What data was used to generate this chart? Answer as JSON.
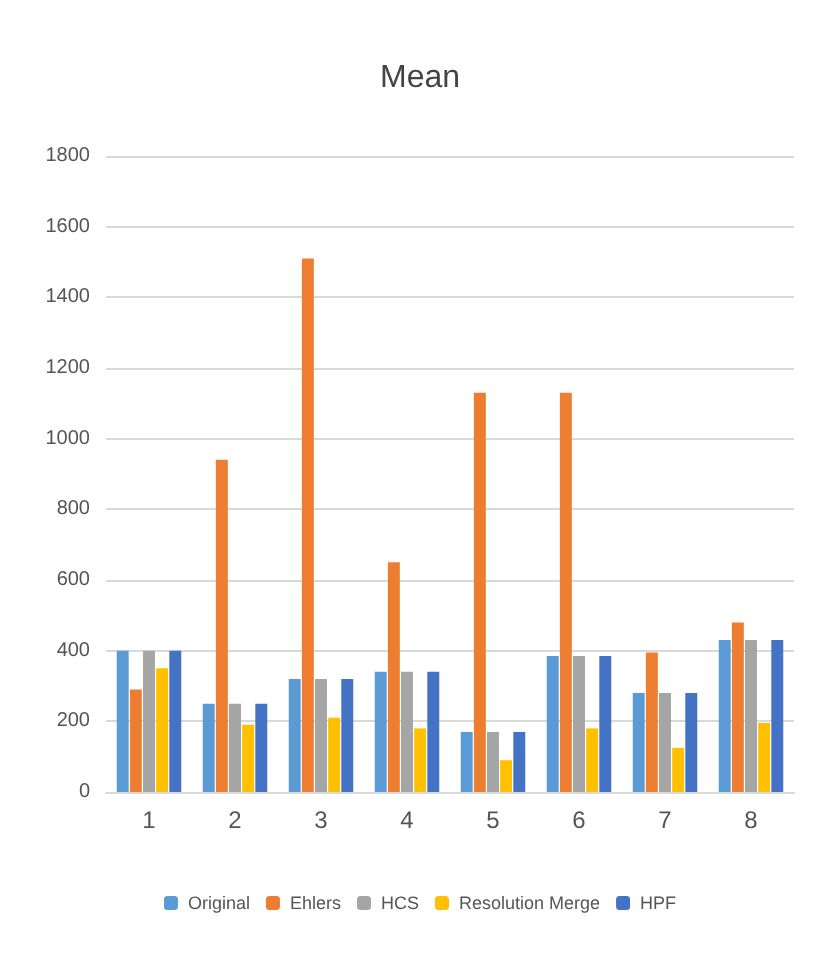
{
  "chart_data": {
    "type": "bar",
    "title": "Mean",
    "categories": [
      "1",
      "2",
      "3",
      "4",
      "5",
      "6",
      "7",
      "8"
    ],
    "series": [
      {
        "name": "Original",
        "color": "#5b9bd5",
        "values": [
          400,
          250,
          320,
          340,
          170,
          385,
          280,
          430
        ]
      },
      {
        "name": "Ehlers",
        "color": "#ed7d31",
        "values": [
          290,
          940,
          1510,
          650,
          1130,
          1130,
          395,
          480
        ]
      },
      {
        "name": "HCS",
        "color": "#a5a5a5",
        "values": [
          400,
          250,
          320,
          340,
          170,
          385,
          280,
          430
        ]
      },
      {
        "name": "Resolution Merge",
        "color": "#ffc000",
        "values": [
          350,
          190,
          210,
          180,
          90,
          180,
          125,
          195
        ]
      },
      {
        "name": "HPF",
        "color": "#4472c4",
        "values": [
          400,
          250,
          320,
          340,
          170,
          385,
          280,
          430
        ]
      }
    ],
    "ylim": [
      0,
      1800
    ],
    "yticks": [
      0,
      200,
      400,
      600,
      800,
      1000,
      1200,
      1400,
      1600,
      1800
    ],
    "grid": "y",
    "legend": "bottom"
  }
}
